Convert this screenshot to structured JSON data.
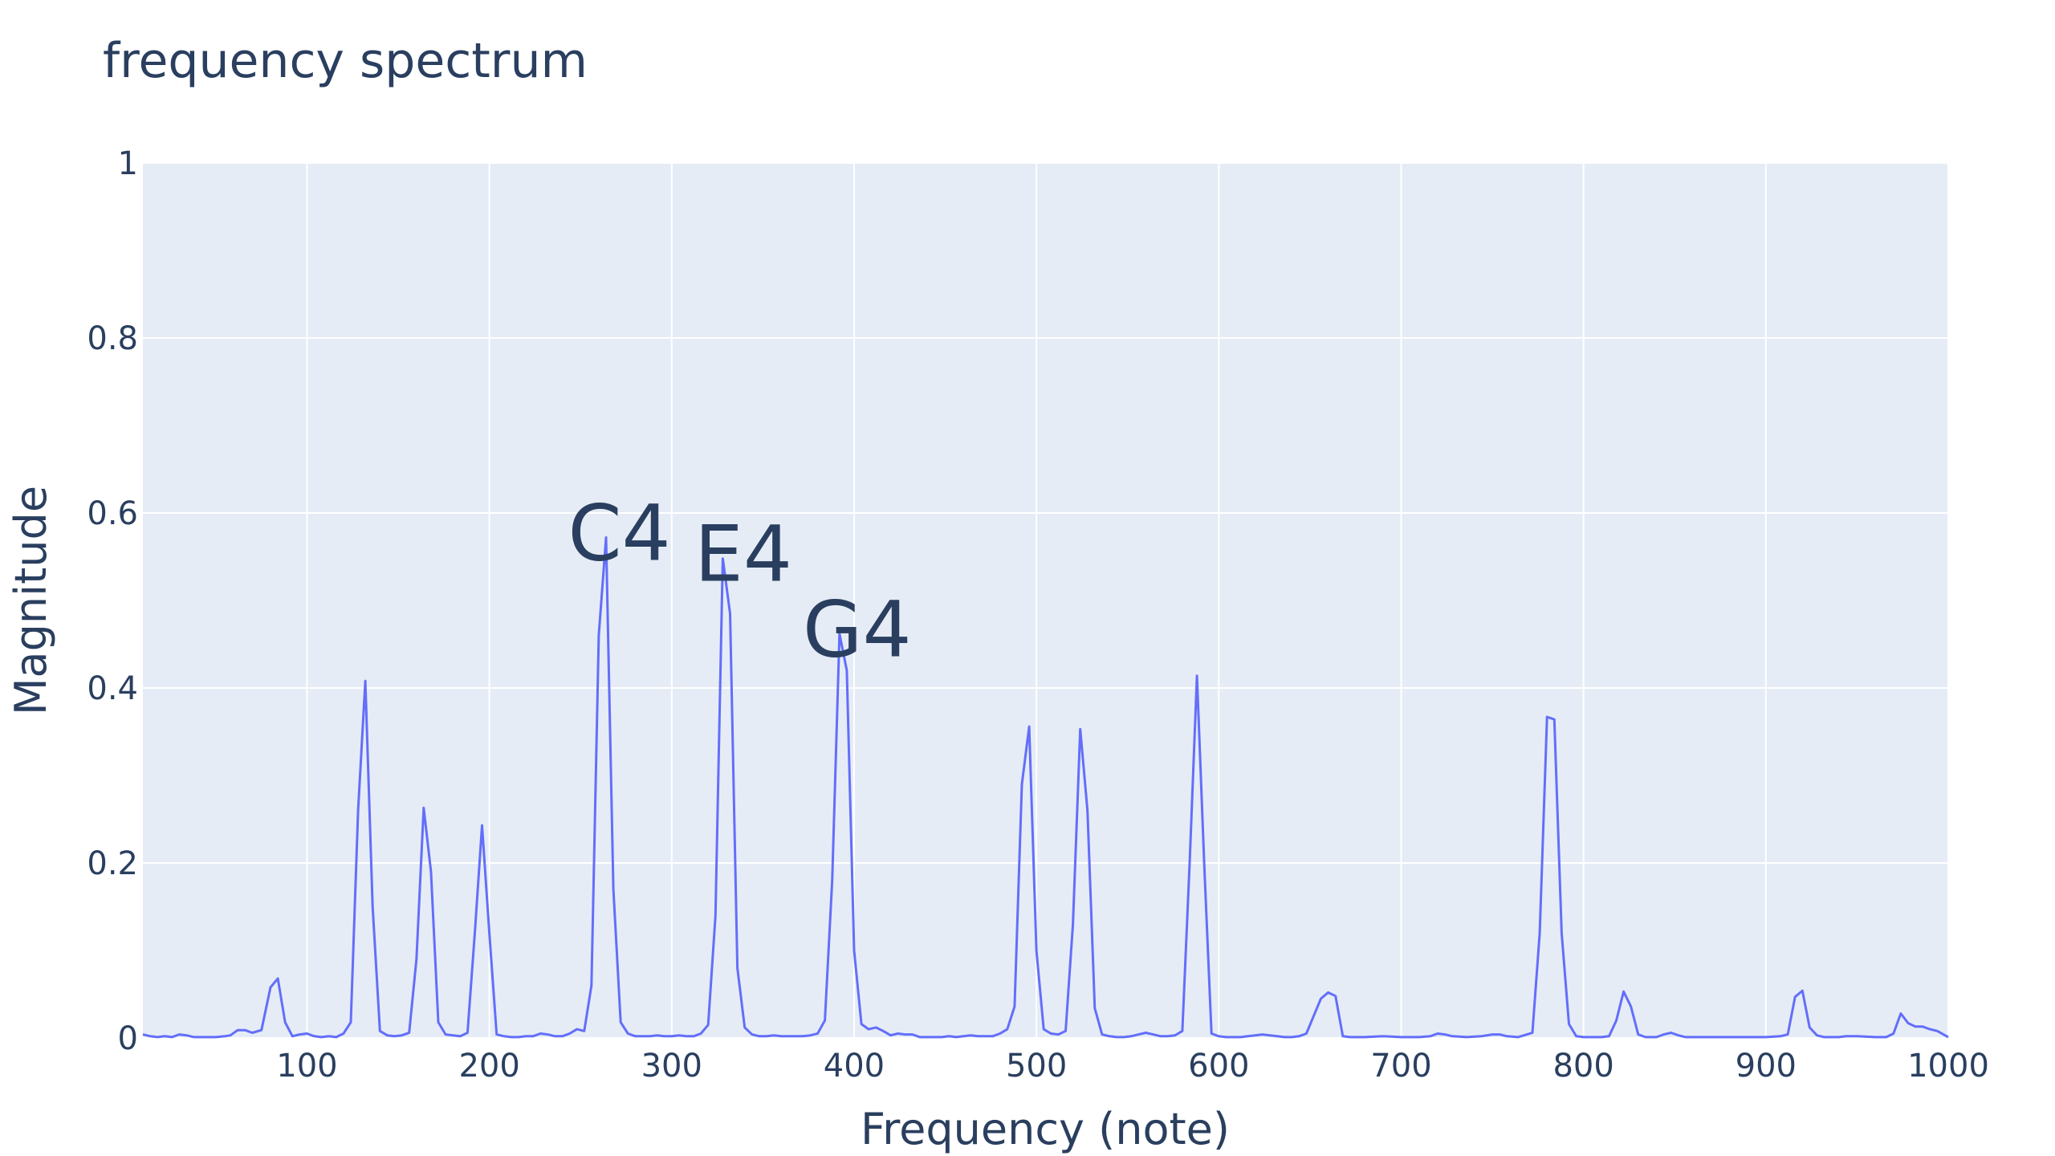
{
  "chart_data": {
    "type": "line",
    "title": "frequency spectrum",
    "xlabel": "Frequency (note)",
    "ylabel": "Magnitude",
    "xlim": [
      10,
      1000
    ],
    "ylim": [
      0,
      1
    ],
    "x_ticks": [
      100,
      200,
      300,
      400,
      500,
      600,
      700,
      800,
      900,
      1000
    ],
    "y_ticks": [
      0,
      0.2,
      0.4,
      0.6,
      0.8,
      1
    ],
    "y_tick_labels": [
      "0",
      "0.2",
      "0.4",
      "0.6",
      "0.8",
      "1"
    ],
    "grid": true,
    "plot_background": "#e5ecf6",
    "series": [
      {
        "color": "#636efa",
        "points": [
          [
            10,
            0.004
          ],
          [
            14,
            0.002
          ],
          [
            18,
            0.001
          ],
          [
            22,
            0.002
          ],
          [
            26,
            0.001
          ],
          [
            30,
            0.004
          ],
          [
            34,
            0.003
          ],
          [
            38,
            0.001
          ],
          [
            42,
            0.001
          ],
          [
            46,
            0.001
          ],
          [
            50,
            0.001
          ],
          [
            55,
            0.002
          ],
          [
            58,
            0.003
          ],
          [
            62,
            0.009
          ],
          [
            66,
            0.009
          ],
          [
            70,
            0.006
          ],
          [
            75,
            0.009
          ],
          [
            80,
            0.058
          ],
          [
            84,
            0.068
          ],
          [
            88,
            0.018
          ],
          [
            92,
            0.002
          ],
          [
            96,
            0.004
          ],
          [
            100,
            0.005
          ],
          [
            104,
            0.002
          ],
          [
            108,
            0.001
          ],
          [
            112,
            0.002
          ],
          [
            116,
            0.001
          ],
          [
            120,
            0.005
          ],
          [
            124,
            0.018
          ],
          [
            128,
            0.26
          ],
          [
            132,
            0.408
          ],
          [
            136,
            0.15
          ],
          [
            140,
            0.008
          ],
          [
            144,
            0.003
          ],
          [
            148,
            0.002
          ],
          [
            152,
            0.003
          ],
          [
            156,
            0.006
          ],
          [
            160,
            0.09
          ],
          [
            164,
            0.263
          ],
          [
            168,
            0.19
          ],
          [
            172,
            0.018
          ],
          [
            176,
            0.004
          ],
          [
            180,
            0.003
          ],
          [
            184,
            0.002
          ],
          [
            188,
            0.006
          ],
          [
            192,
            0.12
          ],
          [
            196,
            0.243
          ],
          [
            200,
            0.12
          ],
          [
            204,
            0.004
          ],
          [
            208,
            0.002
          ],
          [
            212,
            0.001
          ],
          [
            216,
            0.001
          ],
          [
            220,
            0.002
          ],
          [
            224,
            0.002
          ],
          [
            228,
            0.005
          ],
          [
            232,
            0.004
          ],
          [
            236,
            0.002
          ],
          [
            240,
            0.002
          ],
          [
            244,
            0.005
          ],
          [
            248,
            0.01
          ],
          [
            252,
            0.008
          ],
          [
            256,
            0.06
          ],
          [
            260,
            0.46
          ],
          [
            264,
            0.572
          ],
          [
            268,
            0.17
          ],
          [
            272,
            0.018
          ],
          [
            276,
            0.005
          ],
          [
            280,
            0.002
          ],
          [
            284,
            0.002
          ],
          [
            288,
            0.002
          ],
          [
            292,
            0.003
          ],
          [
            296,
            0.002
          ],
          [
            300,
            0.002
          ],
          [
            304,
            0.003
          ],
          [
            308,
            0.002
          ],
          [
            312,
            0.002
          ],
          [
            316,
            0.005
          ],
          [
            320,
            0.015
          ],
          [
            324,
            0.14
          ],
          [
            328,
            0.548
          ],
          [
            332,
            0.485
          ],
          [
            336,
            0.08
          ],
          [
            340,
            0.012
          ],
          [
            344,
            0.004
          ],
          [
            348,
            0.002
          ],
          [
            352,
            0.002
          ],
          [
            356,
            0.003
          ],
          [
            360,
            0.002
          ],
          [
            364,
            0.002
          ],
          [
            368,
            0.002
          ],
          [
            372,
            0.002
          ],
          [
            376,
            0.003
          ],
          [
            380,
            0.005
          ],
          [
            384,
            0.02
          ],
          [
            388,
            0.18
          ],
          [
            392,
            0.462
          ],
          [
            396,
            0.42
          ],
          [
            400,
            0.1
          ],
          [
            404,
            0.016
          ],
          [
            408,
            0.01
          ],
          [
            412,
            0.012
          ],
          [
            416,
            0.008
          ],
          [
            420,
            0.003
          ],
          [
            424,
            0.005
          ],
          [
            428,
            0.004
          ],
          [
            432,
            0.004
          ],
          [
            436,
            0.001
          ],
          [
            440,
            0.001
          ],
          [
            444,
            0.001
          ],
          [
            448,
            0.001
          ],
          [
            452,
            0.002
          ],
          [
            456,
            0.001
          ],
          [
            460,
            0.002
          ],
          [
            464,
            0.003
          ],
          [
            468,
            0.002
          ],
          [
            472,
            0.002
          ],
          [
            476,
            0.002
          ],
          [
            480,
            0.005
          ],
          [
            484,
            0.01
          ],
          [
            488,
            0.036
          ],
          [
            492,
            0.29
          ],
          [
            496,
            0.356
          ],
          [
            500,
            0.1
          ],
          [
            504,
            0.01
          ],
          [
            508,
            0.005
          ],
          [
            512,
            0.004
          ],
          [
            516,
            0.008
          ],
          [
            520,
            0.13
          ],
          [
            524,
            0.353
          ],
          [
            528,
            0.26
          ],
          [
            532,
            0.034
          ],
          [
            536,
            0.004
          ],
          [
            540,
            0.002
          ],
          [
            544,
            0.001
          ],
          [
            548,
            0.001
          ],
          [
            552,
            0.002
          ],
          [
            556,
            0.004
          ],
          [
            560,
            0.006
          ],
          [
            564,
            0.004
          ],
          [
            568,
            0.002
          ],
          [
            572,
            0.002
          ],
          [
            576,
            0.003
          ],
          [
            580,
            0.008
          ],
          [
            584,
            0.2
          ],
          [
            588,
            0.414
          ],
          [
            592,
            0.2
          ],
          [
            596,
            0.005
          ],
          [
            600,
            0.002
          ],
          [
            604,
            0.001
          ],
          [
            608,
            0.001
          ],
          [
            612,
            0.001
          ],
          [
            616,
            0.002
          ],
          [
            620,
            0.003
          ],
          [
            624,
            0.004
          ],
          [
            628,
            0.003
          ],
          [
            632,
            0.002
          ],
          [
            636,
            0.001
          ],
          [
            640,
            0.001
          ],
          [
            644,
            0.002
          ],
          [
            648,
            0.005
          ],
          [
            652,
            0.025
          ],
          [
            656,
            0.045
          ],
          [
            660,
            0.052
          ],
          [
            664,
            0.048
          ],
          [
            668,
            0.002
          ],
          [
            672,
            0.001
          ],
          [
            680,
            0.001
          ],
          [
            690,
            0.002
          ],
          [
            700,
            0.001
          ],
          [
            710,
            0.001
          ],
          [
            716,
            0.002
          ],
          [
            720,
            0.005
          ],
          [
            724,
            0.004
          ],
          [
            728,
            0.002
          ],
          [
            736,
            0.001
          ],
          [
            744,
            0.002
          ],
          [
            750,
            0.004
          ],
          [
            754,
            0.004
          ],
          [
            758,
            0.002
          ],
          [
            764,
            0.001
          ],
          [
            772,
            0.006
          ],
          [
            776,
            0.12
          ],
          [
            780,
            0.367
          ],
          [
            784,
            0.364
          ],
          [
            788,
            0.12
          ],
          [
            792,
            0.016
          ],
          [
            796,
            0.002
          ],
          [
            800,
            0.001
          ],
          [
            810,
            0.001
          ],
          [
            814,
            0.002
          ],
          [
            818,
            0.02
          ],
          [
            822,
            0.053
          ],
          [
            826,
            0.036
          ],
          [
            830,
            0.004
          ],
          [
            834,
            0.001
          ],
          [
            840,
            0.001
          ],
          [
            844,
            0.004
          ],
          [
            848,
            0.006
          ],
          [
            852,
            0.003
          ],
          [
            856,
            0.001
          ],
          [
            870,
            0.001
          ],
          [
            880,
            0.001
          ],
          [
            890,
            0.001
          ],
          [
            900,
            0.001
          ],
          [
            908,
            0.002
          ],
          [
            912,
            0.004
          ],
          [
            916,
            0.047
          ],
          [
            920,
            0.054
          ],
          [
            924,
            0.012
          ],
          [
            928,
            0.003
          ],
          [
            932,
            0.001
          ],
          [
            940,
            0.001
          ],
          [
            944,
            0.002
          ],
          [
            950,
            0.002
          ],
          [
            960,
            0.001
          ],
          [
            966,
            0.001
          ],
          [
            970,
            0.005
          ],
          [
            974,
            0.028
          ],
          [
            978,
            0.017
          ],
          [
            982,
            0.013
          ],
          [
            986,
            0.013
          ],
          [
            990,
            0.01
          ],
          [
            994,
            0.008
          ],
          [
            1000,
            0.001
          ]
        ]
      }
    ],
    "annotations": [
      {
        "text": "C4",
        "x": 261.6,
        "y": 0.572
      },
      {
        "text": "E4",
        "x": 329.6,
        "y": 0.548
      },
      {
        "text": "G4",
        "x": 392.0,
        "y": 0.462
      }
    ]
  }
}
